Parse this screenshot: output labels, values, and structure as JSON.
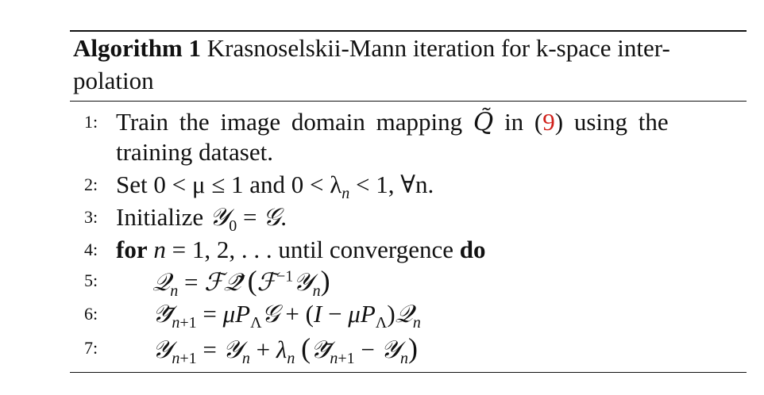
{
  "algorithm": {
    "label": "Algorithm 1",
    "title_line1": "Krasnoselskii-Mann iteration for k-space inter-",
    "title_line2": "polation"
  },
  "steps": [
    {
      "num": "1:",
      "text_a": "Train the image domain mapping",
      "text_b": "in (",
      "cite": "9",
      "text_c": ") using the",
      "text_d": "training dataset."
    },
    {
      "num": "2:",
      "text": "Set 0 < μ ≤ 1 and 0 < λ",
      "text_tail": " < 1, ∀n."
    },
    {
      "num": "3:",
      "text": "Initialize"
    },
    {
      "num": "4:",
      "kw_for": "for",
      "text": "until convergence",
      "kw_do": "do"
    },
    {
      "num": "5:"
    },
    {
      "num": "6:"
    },
    {
      "num": "7:"
    }
  ]
}
